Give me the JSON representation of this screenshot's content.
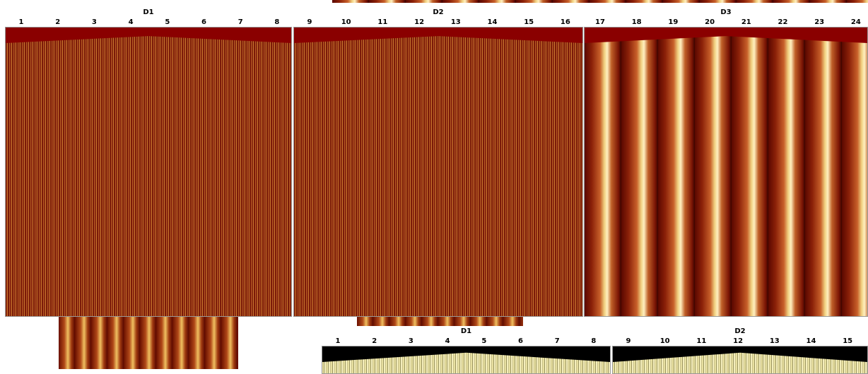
{
  "top_panels": [
    {
      "title": "D1",
      "labels": [
        1,
        2,
        3,
        4,
        5,
        6,
        7,
        8
      ]
    },
    {
      "title": "D2",
      "labels": [
        9,
        10,
        11,
        12,
        13,
        14,
        15,
        16
      ]
    },
    {
      "title": "D3",
      "labels": [
        17,
        18,
        19,
        20,
        21,
        22,
        23,
        24
      ]
    }
  ],
  "bottom_panels": [
    {
      "title": "D1",
      "labels": [
        1,
        2,
        3,
        4,
        5,
        6,
        7,
        8
      ]
    },
    {
      "title": "D2",
      "labels": [
        9,
        10,
        11,
        12,
        13,
        14,
        15
      ]
    }
  ]
}
